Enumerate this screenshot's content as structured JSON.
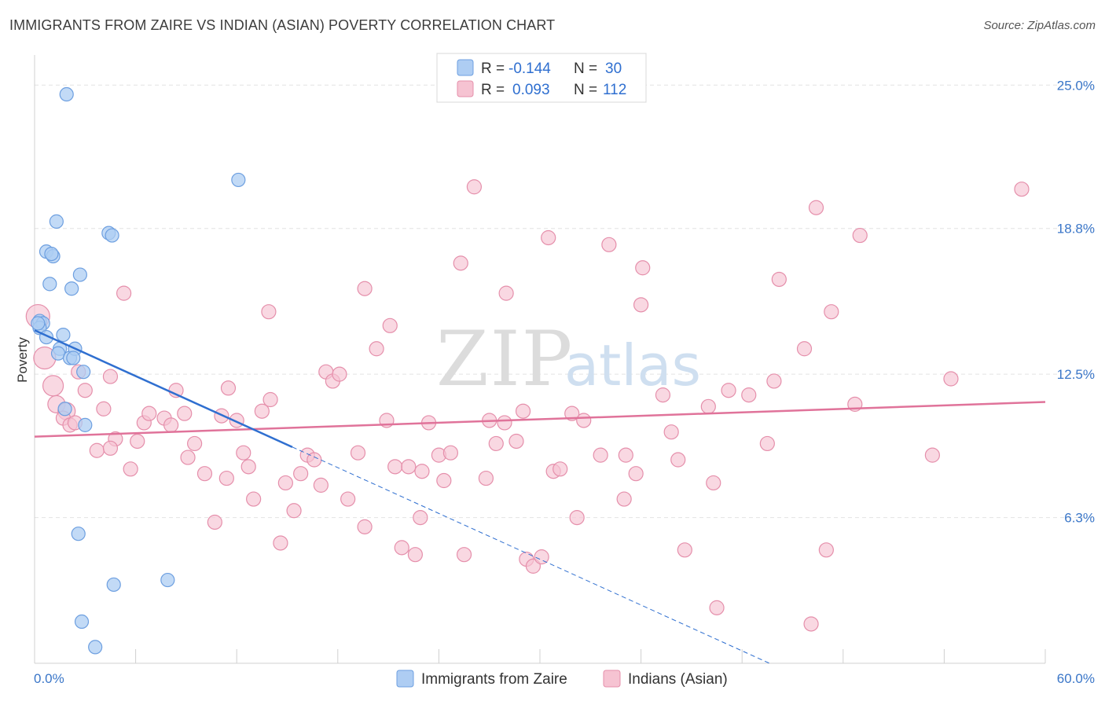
{
  "header": {
    "title": "IMMIGRANTS FROM ZAIRE VS INDIAN (ASIAN) POVERTY CORRELATION CHART",
    "source": "Source: ZipAtlas.com"
  },
  "watermark": {
    "zip": "ZIP",
    "atlas": "atlas"
  },
  "legend": {
    "rows": [
      {
        "r_label": "R =",
        "r_value": "-0.144",
        "n_label": "N =",
        "n_value": "30"
      },
      {
        "r_label": "R =",
        "r_value": "0.093",
        "n_label": "N =",
        "n_value": "112"
      }
    ]
  },
  "bottom_legend": [
    "Immigrants from Zaire",
    "Indians (Asian)"
  ],
  "colors": {
    "blue_fill": "#aecdf3",
    "blue_stroke": "#6d9fe0",
    "blue_line": "#2f6fd0",
    "pink_fill": "#f6c3d2",
    "pink_stroke": "#e58fab",
    "pink_line": "#e0739a",
    "grid": "#e3e3e3",
    "axis_text": "#3a76c8"
  },
  "chart_data": {
    "type": "scatter",
    "title": "IMMIGRANTS FROM ZAIRE VS INDIAN (ASIAN) POVERTY CORRELATION CHART",
    "ylabel": "Poverty",
    "xlim": [
      0,
      60
    ],
    "ylim": [
      0,
      26.3
    ],
    "x_tick_labels": [
      "0.0%",
      "60.0%"
    ],
    "y_ticks": [
      6.3,
      12.5,
      18.8,
      25.0
    ],
    "y_tick_labels": [
      "6.3%",
      "12.5%",
      "18.8%",
      "25.0%"
    ],
    "grid": true,
    "legend_position": "top-center",
    "series": [
      {
        "name": "Immigrants from Zaire",
        "color": "#6d9fe0",
        "r": -0.144,
        "n": 30,
        "trend": {
          "x": [
            0,
            15.3
          ],
          "y": [
            14.4,
            9.35
          ],
          "dashed_to": [
            60,
            -5.3
          ]
        },
        "points": [
          [
            1.9,
            24.6
          ],
          [
            0.3,
            14.8
          ],
          [
            0.5,
            14.7
          ],
          [
            0.3,
            14.5
          ],
          [
            0.7,
            14.1
          ],
          [
            1.3,
            19.1
          ],
          [
            0.7,
            17.8
          ],
          [
            1.1,
            17.6
          ],
          [
            1.0,
            17.7
          ],
          [
            0.9,
            16.4
          ],
          [
            2.7,
            16.8
          ],
          [
            2.2,
            16.2
          ],
          [
            4.4,
            18.6
          ],
          [
            4.6,
            18.5
          ],
          [
            12.1,
            20.9
          ],
          [
            1.7,
            14.2
          ],
          [
            1.5,
            13.6
          ],
          [
            1.4,
            13.4
          ],
          [
            2.1,
            13.2
          ],
          [
            2.4,
            13.6
          ],
          [
            2.3,
            13.2
          ],
          [
            2.9,
            12.6
          ],
          [
            1.8,
            11.0
          ],
          [
            3.0,
            10.3
          ],
          [
            2.6,
            5.6
          ],
          [
            4.7,
            3.4
          ],
          [
            7.9,
            3.6
          ],
          [
            2.8,
            1.8
          ],
          [
            3.6,
            0.7
          ],
          [
            0.2,
            14.7
          ]
        ]
      },
      {
        "name": "Indians (Asian)",
        "color": "#e58fab",
        "r": 0.093,
        "n": 112,
        "trend": {
          "x": [
            0,
            60
          ],
          "y": [
            9.8,
            11.3
          ]
        },
        "points": [
          [
            0.2,
            15.0
          ],
          [
            0.6,
            13.2
          ],
          [
            1.1,
            12.0
          ],
          [
            1.3,
            11.2
          ],
          [
            1.9,
            10.9
          ],
          [
            1.7,
            10.6
          ],
          [
            2.1,
            10.3
          ],
          [
            2.4,
            10.4
          ],
          [
            2.6,
            12.6
          ],
          [
            3.0,
            11.8
          ],
          [
            4.1,
            11.0
          ],
          [
            4.5,
            12.4
          ],
          [
            5.3,
            16.0
          ],
          [
            4.8,
            9.7
          ],
          [
            3.7,
            9.2
          ],
          [
            4.5,
            9.3
          ],
          [
            6.1,
            9.6
          ],
          [
            5.7,
            8.4
          ],
          [
            6.5,
            10.4
          ],
          [
            6.8,
            10.8
          ],
          [
            7.7,
            10.6
          ],
          [
            8.1,
            10.3
          ],
          [
            8.4,
            11.8
          ],
          [
            8.9,
            10.8
          ],
          [
            9.1,
            8.9
          ],
          [
            9.5,
            9.5
          ],
          [
            10.1,
            8.2
          ],
          [
            10.7,
            6.1
          ],
          [
            11.1,
            10.7
          ],
          [
            11.5,
            11.9
          ],
          [
            11.4,
            8.0
          ],
          [
            12.0,
            10.5
          ],
          [
            12.4,
            9.1
          ],
          [
            12.7,
            8.5
          ],
          [
            13.0,
            7.1
          ],
          [
            13.5,
            10.9
          ],
          [
            14.0,
            11.4
          ],
          [
            13.9,
            15.2
          ],
          [
            14.6,
            5.2
          ],
          [
            14.9,
            7.8
          ],
          [
            15.4,
            6.6
          ],
          [
            15.8,
            8.2
          ],
          [
            16.2,
            9.0
          ],
          [
            16.6,
            8.8
          ],
          [
            17.0,
            7.7
          ],
          [
            17.3,
            12.6
          ],
          [
            17.7,
            12.2
          ],
          [
            18.1,
            12.5
          ],
          [
            18.6,
            7.1
          ],
          [
            19.2,
            9.1
          ],
          [
            19.6,
            16.2
          ],
          [
            19.6,
            5.9
          ],
          [
            20.3,
            13.6
          ],
          [
            20.9,
            10.5
          ],
          [
            21.1,
            14.6
          ],
          [
            21.4,
            8.5
          ],
          [
            21.8,
            5.0
          ],
          [
            22.2,
            8.5
          ],
          [
            22.6,
            4.7
          ],
          [
            23.0,
            8.3
          ],
          [
            23.4,
            10.4
          ],
          [
            22.9,
            6.3
          ],
          [
            24.0,
            9.0
          ],
          [
            24.3,
            7.9
          ],
          [
            24.7,
            9.1
          ],
          [
            25.3,
            17.3
          ],
          [
            25.5,
            4.7
          ],
          [
            26.1,
            20.6
          ],
          [
            26.8,
            8.0
          ],
          [
            27.0,
            10.5
          ],
          [
            27.4,
            9.5
          ],
          [
            28.0,
            16.0
          ],
          [
            27.9,
            10.4
          ],
          [
            28.6,
            9.6
          ],
          [
            29.0,
            10.9
          ],
          [
            29.2,
            4.5
          ],
          [
            29.6,
            4.2
          ],
          [
            30.1,
            4.6
          ],
          [
            30.5,
            18.4
          ],
          [
            30.8,
            8.3
          ],
          [
            31.2,
            8.4
          ],
          [
            31.9,
            10.8
          ],
          [
            32.2,
            6.3
          ],
          [
            32.6,
            10.5
          ],
          [
            33.6,
            9.0
          ],
          [
            34.1,
            18.1
          ],
          [
            35.0,
            7.1
          ],
          [
            35.1,
            9.0
          ],
          [
            35.7,
            8.2
          ],
          [
            36.1,
            17.1
          ],
          [
            36.0,
            15.5
          ],
          [
            37.3,
            11.6
          ],
          [
            37.8,
            10.0
          ],
          [
            38.2,
            8.8
          ],
          [
            38.6,
            4.9
          ],
          [
            40.0,
            11.1
          ],
          [
            40.3,
            7.8
          ],
          [
            40.5,
            2.4
          ],
          [
            41.2,
            11.8
          ],
          [
            42.4,
            11.6
          ],
          [
            43.5,
            9.5
          ],
          [
            43.9,
            12.2
          ],
          [
            44.2,
            16.6
          ],
          [
            45.7,
            13.6
          ],
          [
            46.4,
            19.7
          ],
          [
            47.0,
            4.9
          ],
          [
            47.3,
            15.2
          ],
          [
            48.7,
            11.2
          ],
          [
            49.0,
            18.5
          ],
          [
            46.1,
            1.7
          ],
          [
            53.3,
            9.0
          ],
          [
            54.4,
            12.3
          ],
          [
            58.6,
            20.5
          ]
        ]
      }
    ]
  }
}
